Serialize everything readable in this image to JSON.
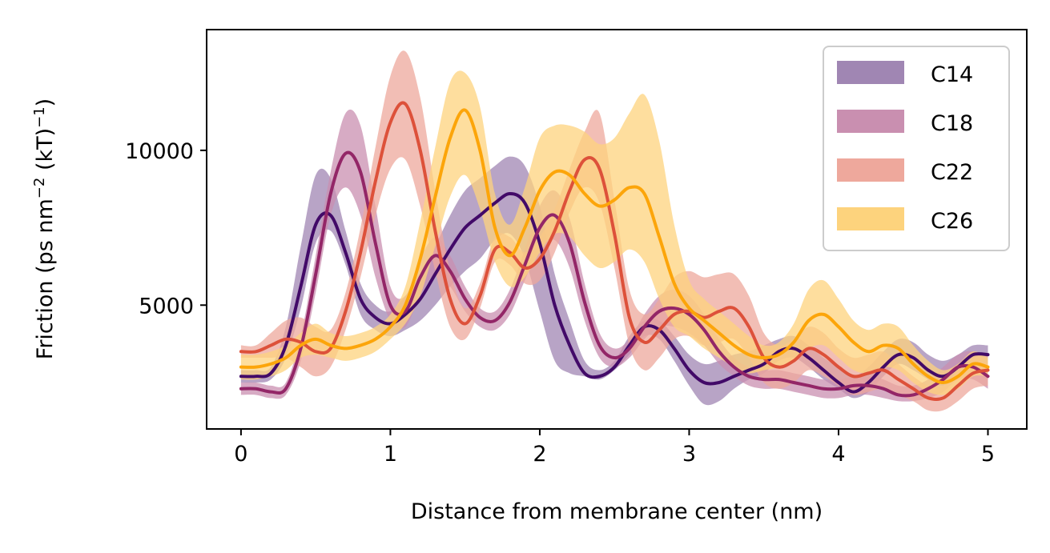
{
  "chart_data": {
    "type": "line",
    "title": "",
    "xlabel": "Distance from membrane center (nm)",
    "ylabel_parts": [
      "Friction (ps nm",
      "−2",
      " (kT)",
      "−1",
      ")"
    ],
    "xlim": [
      -0.23,
      5.26
    ],
    "ylim": [
      1000,
      13900
    ],
    "x_ticks": [
      0,
      1,
      2,
      3,
      4,
      5
    ],
    "x_tick_labels": [
      "0",
      "1",
      "2",
      "3",
      "4",
      "5"
    ],
    "y_ticks": [
      5000,
      10000
    ],
    "y_tick_labels": [
      "5000",
      "10000"
    ],
    "grid": false,
    "legend_position": "top-right",
    "series": [
      {
        "name": "C14",
        "color": "#420a68",
        "band_color": "#a086b3",
        "x": [
          0.0,
          0.1,
          0.2,
          0.3,
          0.4,
          0.5,
          0.6,
          0.7,
          0.8,
          0.9,
          1.0,
          1.1,
          1.2,
          1.3,
          1.4,
          1.5,
          1.6,
          1.7,
          1.8,
          1.9,
          2.0,
          2.1,
          2.2,
          2.3,
          2.4,
          2.5,
          2.6,
          2.7,
          2.8,
          2.9,
          3.0,
          3.1,
          3.2,
          3.3,
          3.4,
          3.5,
          3.6,
          3.7,
          3.8,
          3.9,
          4.0,
          4.1,
          4.2,
          4.3,
          4.4,
          4.5,
          4.6,
          4.7,
          4.8,
          4.9,
          5.0
        ],
        "y": [
          2700,
          2700,
          2800,
          3700,
          5600,
          7600,
          7900,
          6700,
          5200,
          4600,
          4400,
          4700,
          5200,
          6000,
          6800,
          7500,
          7900,
          8300,
          8600,
          8300,
          7000,
          5000,
          3700,
          2800,
          2700,
          3000,
          3700,
          4300,
          4200,
          3600,
          2900,
          2500,
          2500,
          2700,
          2900,
          3100,
          3500,
          3600,
          3300,
          2900,
          2500,
          2200,
          2500,
          3000,
          3400,
          3300,
          2900,
          2700,
          3000,
          3400,
          3400
        ],
        "lower": [
          2500,
          2500,
          2600,
          3300,
          4900,
          7000,
          7400,
          6300,
          4700,
          4200,
          4000,
          4200,
          4500,
          5000,
          5600,
          6100,
          6500,
          7100,
          7300,
          6500,
          4800,
          3200,
          2800,
          2700,
          2600,
          2900,
          3400,
          4000,
          3900,
          3200,
          2400,
          1800,
          1900,
          2300,
          2600,
          2800,
          3200,
          3300,
          3000,
          2600,
          2300,
          2000,
          2200,
          2700,
          3100,
          2900,
          2600,
          2400,
          2700,
          3100,
          3100
        ],
        "upper": [
          2900,
          2900,
          3000,
          4300,
          6900,
          9200,
          9100,
          7400,
          5700,
          5000,
          4800,
          5300,
          5900,
          6900,
          7900,
          8700,
          9100,
          9500,
          9800,
          9500,
          8200,
          6000,
          4500,
          3200,
          2900,
          3200,
          4000,
          4500,
          4500,
          4000,
          3400,
          3100,
          3200,
          3400,
          3500,
          3700,
          3900,
          4000,
          3700,
          3300,
          3000,
          2700,
          3000,
          3500,
          3900,
          3800,
          3400,
          3200,
          3400,
          3700,
          3700
        ]
      },
      {
        "name": "C18",
        "color": "#932667",
        "band_color": "#c98fb0",
        "x": [
          0.0,
          0.1,
          0.2,
          0.3,
          0.4,
          0.5,
          0.6,
          0.7,
          0.8,
          0.9,
          1.0,
          1.1,
          1.2,
          1.3,
          1.4,
          1.5,
          1.6,
          1.7,
          1.8,
          1.9,
          2.0,
          2.1,
          2.2,
          2.3,
          2.4,
          2.5,
          2.6,
          2.7,
          2.8,
          2.9,
          3.0,
          3.1,
          3.2,
          3.3,
          3.4,
          3.5,
          3.6,
          3.7,
          3.8,
          3.9,
          4.0,
          4.1,
          4.2,
          4.3,
          4.4,
          4.5,
          4.6,
          4.7,
          4.8,
          4.9,
          5.0
        ],
        "y": [
          2300,
          2300,
          2200,
          2300,
          3600,
          6000,
          8600,
          9900,
          9300,
          7000,
          5000,
          4800,
          5900,
          6600,
          6100,
          5200,
          4600,
          4500,
          5100,
          6300,
          7500,
          7900,
          7000,
          5100,
          3700,
          3300,
          3600,
          4300,
          4800,
          4900,
          4700,
          4200,
          3500,
          3000,
          2700,
          2600,
          2600,
          2500,
          2400,
          2300,
          2300,
          2400,
          2400,
          2300,
          2100,
          2100,
          2300,
          2600,
          3000,
          3000,
          2700
        ],
        "lower": [
          2100,
          2100,
          2000,
          2100,
          3200,
          5400,
          7900,
          8800,
          7900,
          5900,
          4500,
          4300,
          5300,
          6000,
          5600,
          4800,
          4300,
          4200,
          4700,
          5800,
          6800,
          7100,
          6200,
          4500,
          3300,
          3000,
          3300,
          3900,
          4300,
          4300,
          4100,
          3700,
          3100,
          2700,
          2400,
          2300,
          2300,
          2200,
          2100,
          2000,
          2000,
          2100,
          2100,
          2000,
          1900,
          1900,
          2000,
          2200,
          2600,
          2600,
          2300
        ],
        "upper": [
          2500,
          2500,
          2400,
          2500,
          4000,
          6600,
          9300,
          11200,
          10800,
          8200,
          5600,
          5300,
          6500,
          7200,
          6600,
          5600,
          4900,
          4800,
          5500,
          6800,
          8200,
          8700,
          7800,
          5700,
          4100,
          3600,
          3900,
          4700,
          5300,
          5500,
          5300,
          4700,
          3900,
          3300,
          3000,
          2900,
          2900,
          2800,
          2700,
          2600,
          2600,
          2700,
          2700,
          2600,
          2400,
          2400,
          2600,
          3000,
          3400,
          3500,
          3100
        ]
      },
      {
        "name": "C22",
        "color": "#dd513a",
        "band_color": "#eea89c",
        "x": [
          0.0,
          0.1,
          0.2,
          0.3,
          0.4,
          0.5,
          0.6,
          0.7,
          0.8,
          0.9,
          1.0,
          1.1,
          1.2,
          1.3,
          1.4,
          1.5,
          1.6,
          1.7,
          1.8,
          1.9,
          2.0,
          2.1,
          2.2,
          2.3,
          2.4,
          2.5,
          2.6,
          2.7,
          2.8,
          2.9,
          3.0,
          3.1,
          3.2,
          3.3,
          3.4,
          3.5,
          3.6,
          3.7,
          3.8,
          3.9,
          4.0,
          4.1,
          4.2,
          4.3,
          4.4,
          4.5,
          4.6,
          4.7,
          4.8,
          4.9,
          5.0
        ],
        "y": [
          3500,
          3500,
          3700,
          3900,
          3800,
          3500,
          3600,
          4800,
          6700,
          9000,
          10900,
          11500,
          10000,
          7400,
          5200,
          4400,
          5300,
          6800,
          6700,
          6200,
          6500,
          7400,
          8700,
          9700,
          9400,
          7300,
          4600,
          3800,
          4200,
          4700,
          4800,
          4600,
          4800,
          4900,
          4300,
          3300,
          3000,
          3200,
          3600,
          3400,
          3000,
          2700,
          2800,
          2900,
          2600,
          2300,
          2000,
          2000,
          2400,
          2800,
          2900
        ],
        "lower": [
          3300,
          3300,
          3300,
          3300,
          3000,
          2700,
          3000,
          4200,
          5900,
          7900,
          9400,
          9700,
          8200,
          6100,
          4300,
          3900,
          4900,
          6400,
          6300,
          5700,
          5800,
          6700,
          8000,
          8800,
          8300,
          6200,
          3700,
          2900,
          3300,
          3900,
          4000,
          3700,
          3800,
          3900,
          3300,
          2500,
          2300,
          2500,
          2900,
          2700,
          2400,
          2100,
          2200,
          2300,
          2100,
          1900,
          1600,
          1600,
          1900,
          2300,
          2400
        ],
        "upper": [
          3700,
          3700,
          4100,
          4500,
          4600,
          4300,
          4200,
          5400,
          7500,
          10100,
          12400,
          13200,
          11700,
          8700,
          6100,
          4900,
          5700,
          7200,
          7200,
          6700,
          7200,
          8100,
          9400,
          10600,
          11200,
          8400,
          5500,
          4700,
          5200,
          5900,
          6100,
          5900,
          6000,
          6000,
          5300,
          4100,
          3700,
          3900,
          4300,
          4100,
          3600,
          3300,
          3400,
          3500,
          3100,
          2700,
          2400,
          2400,
          2900,
          3300,
          3400
        ]
      },
      {
        "name": "C26",
        "color": "#fca50a",
        "band_color": "#fdd37d",
        "x": [
          0.0,
          0.1,
          0.2,
          0.3,
          0.4,
          0.5,
          0.6,
          0.7,
          0.8,
          0.9,
          1.0,
          1.1,
          1.2,
          1.3,
          1.4,
          1.5,
          1.6,
          1.7,
          1.8,
          1.9,
          2.0,
          2.1,
          2.2,
          2.3,
          2.4,
          2.5,
          2.6,
          2.7,
          2.8,
          2.9,
          3.0,
          3.1,
          3.2,
          3.3,
          3.4,
          3.5,
          3.6,
          3.7,
          3.8,
          3.9,
          4.0,
          4.1,
          4.2,
          4.3,
          4.4,
          4.5,
          4.6,
          4.7,
          4.8,
          4.9,
          5.0
        ],
        "y": [
          3000,
          3000,
          3100,
          3300,
          3700,
          3900,
          3700,
          3600,
          3700,
          3900,
          4300,
          5000,
          6500,
          8500,
          10400,
          11300,
          10000,
          7500,
          6600,
          7500,
          8700,
          9300,
          9200,
          8600,
          8200,
          8400,
          8800,
          8600,
          7200,
          5700,
          4900,
          4500,
          4100,
          3700,
          3400,
          3300,
          3400,
          3800,
          4500,
          4700,
          4300,
          3800,
          3500,
          3700,
          3600,
          3100,
          2700,
          2500,
          2700,
          3100,
          3000
        ],
        "lower": [
          2600,
          2600,
          2700,
          2900,
          3300,
          3400,
          3300,
          3200,
          3300,
          3500,
          3900,
          4400,
          5300,
          6900,
          8500,
          9200,
          8100,
          6400,
          5600,
          5900,
          6700,
          7300,
          7200,
          6600,
          6200,
          6400,
          6800,
          6400,
          5200,
          4300,
          4000,
          3600,
          3300,
          3000,
          2800,
          2900,
          3000,
          3200,
          3600,
          3700,
          3300,
          2900,
          2800,
          3000,
          2900,
          2500,
          2200,
          2100,
          2300,
          2700,
          2700
        ],
        "upper": [
          3400,
          3400,
          3500,
          3700,
          4100,
          4400,
          4100,
          4000,
          4100,
          4300,
          4700,
          5600,
          7700,
          10100,
          12200,
          12500,
          11400,
          8600,
          7600,
          8800,
          10400,
          10800,
          10800,
          10600,
          10200,
          10400,
          11200,
          11800,
          10300,
          7600,
          5800,
          5200,
          4800,
          4400,
          4000,
          3700,
          3800,
          4400,
          5500,
          5800,
          5200,
          4500,
          4200,
          4400,
          4300,
          3700,
          3200,
          2900,
          3100,
          3500,
          3300
        ]
      }
    ]
  }
}
